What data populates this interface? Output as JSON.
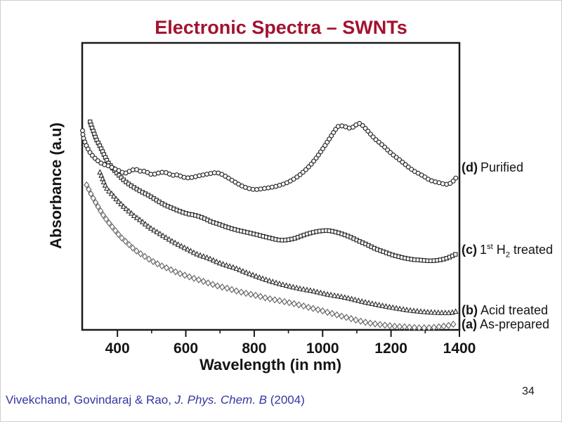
{
  "slide": {
    "title": "Electronic Spectra – SWNTs",
    "title_color": "#a21330",
    "page_number": "34",
    "citation": {
      "authors": "Vivekchand, Govindaraj & Rao, ",
      "journal_italic": "J. Phys. Chem. B",
      "year": " (2004)",
      "color": "#3535a3"
    }
  },
  "chart_data": {
    "type": "scatter",
    "title": "",
    "xlabel": "Wavelength (in nm)",
    "ylabel": "Absorbance (a.u)",
    "x_range_nm": [
      297,
      1400
    ],
    "x_major_ticks": [
      400,
      600,
      800,
      1000,
      1200,
      1400
    ],
    "x_minor_ticks": [
      500,
      700,
      900,
      1100,
      1300
    ],
    "y_axis": "arbitrary units (no ticks, no labels)",
    "axis_color": "#1a1a1a",
    "legend_position": "right of plot, beside curve endpoints",
    "series": [
      {
        "id": "d",
        "tag": "(d)",
        "name": "Purified",
        "marker": "circle",
        "stroke": "#2a2a2a",
        "points": [
          [
            298,
            0.694
          ],
          [
            300,
            0.669
          ],
          [
            308,
            0.645
          ],
          [
            316,
            0.625
          ],
          [
            326,
            0.608
          ],
          [
            336,
            0.596
          ],
          [
            349,
            0.583
          ],
          [
            361,
            0.576
          ],
          [
            375,
            0.571
          ],
          [
            392,
            0.561
          ],
          [
            406,
            0.554
          ],
          [
            421,
            0.544
          ],
          [
            437,
            0.554
          ],
          [
            453,
            0.561
          ],
          [
            468,
            0.551
          ],
          [
            482,
            0.554
          ],
          [
            494,
            0.542
          ],
          [
            509,
            0.542
          ],
          [
            525,
            0.549
          ],
          [
            544,
            0.549
          ],
          [
            560,
            0.537
          ],
          [
            574,
            0.542
          ],
          [
            591,
            0.532
          ],
          [
            611,
            0.529
          ],
          [
            638,
            0.537
          ],
          [
            667,
            0.544
          ],
          [
            693,
            0.549
          ],
          [
            714,
            0.537
          ],
          [
            734,
            0.522
          ],
          [
            755,
            0.507
          ],
          [
            775,
            0.495
          ],
          [
            802,
            0.488
          ],
          [
            831,
            0.493
          ],
          [
            857,
            0.498
          ],
          [
            878,
            0.505
          ],
          [
            905,
            0.517
          ],
          [
            939,
            0.544
          ],
          [
            974,
            0.586
          ],
          [
            1007,
            0.642
          ],
          [
            1036,
            0.696
          ],
          [
            1048,
            0.713
          ],
          [
            1067,
            0.708
          ],
          [
            1083,
            0.701
          ],
          [
            1099,
            0.716
          ],
          [
            1110,
            0.721
          ],
          [
            1130,
            0.696
          ],
          [
            1151,
            0.667
          ],
          [
            1179,
            0.64
          ],
          [
            1200,
            0.615
          ],
          [
            1227,
            0.591
          ],
          [
            1262,
            0.556
          ],
          [
            1294,
            0.537
          ],
          [
            1315,
            0.52
          ],
          [
            1343,
            0.512
          ],
          [
            1364,
            0.505
          ],
          [
            1380,
            0.515
          ],
          [
            1396,
            0.539
          ]
        ]
      },
      {
        "id": "c",
        "tag": "(c)",
        "name": "1st H2 treated",
        "name_parts": {
          "n1": "1",
          "sup": "st",
          "n2": " H",
          "sub": "2",
          "n3": " treated"
        },
        "marker": "square",
        "stroke": "#2a2a2a",
        "points": [
          [
            320,
            0.725
          ],
          [
            326,
            0.703
          ],
          [
            332,
            0.684
          ],
          [
            338,
            0.664
          ],
          [
            347,
            0.645
          ],
          [
            355,
            0.625
          ],
          [
            363,
            0.605
          ],
          [
            371,
            0.586
          ],
          [
            382,
            0.569
          ],
          [
            392,
            0.554
          ],
          [
            402,
            0.542
          ],
          [
            412,
            0.529
          ],
          [
            423,
            0.517
          ],
          [
            437,
            0.505
          ],
          [
            453,
            0.493
          ],
          [
            472,
            0.48
          ],
          [
            488,
            0.471
          ],
          [
            509,
            0.456
          ],
          [
            529,
            0.441
          ],
          [
            556,
            0.426
          ],
          [
            581,
            0.414
          ],
          [
            605,
            0.404
          ],
          [
            626,
            0.4
          ],
          [
            652,
            0.39
          ],
          [
            673,
            0.377
          ],
          [
            693,
            0.37
          ],
          [
            708,
            0.363
          ],
          [
            741,
            0.35
          ],
          [
            775,
            0.341
          ],
          [
            810,
            0.331
          ],
          [
            843,
            0.321
          ],
          [
            878,
            0.311
          ],
          [
            913,
            0.316
          ],
          [
            946,
            0.331
          ],
          [
            974,
            0.341
          ],
          [
            1001,
            0.346
          ],
          [
            1021,
            0.346
          ],
          [
            1048,
            0.338
          ],
          [
            1077,
            0.326
          ],
          [
            1103,
            0.311
          ],
          [
            1130,
            0.297
          ],
          [
            1155,
            0.282
          ],
          [
            1179,
            0.272
          ],
          [
            1206,
            0.26
          ],
          [
            1233,
            0.252
          ],
          [
            1262,
            0.245
          ],
          [
            1288,
            0.243
          ],
          [
            1315,
            0.24
          ],
          [
            1343,
            0.243
          ],
          [
            1370,
            0.252
          ],
          [
            1395,
            0.267
          ]
        ]
      },
      {
        "id": "b",
        "tag": "(b)",
        "name": "Acid treated",
        "marker": "triangle",
        "stroke": "#2a2a2a",
        "points": [
          [
            349,
            0.549
          ],
          [
            355,
            0.532
          ],
          [
            365,
            0.5
          ],
          [
            375,
            0.483
          ],
          [
            386,
            0.471
          ],
          [
            398,
            0.453
          ],
          [
            410,
            0.439
          ],
          [
            421,
            0.426
          ],
          [
            435,
            0.412
          ],
          [
            449,
            0.397
          ],
          [
            464,
            0.385
          ],
          [
            480,
            0.37
          ],
          [
            496,
            0.355
          ],
          [
            513,
            0.343
          ],
          [
            529,
            0.331
          ],
          [
            546,
            0.319
          ],
          [
            564,
            0.306
          ],
          [
            583,
            0.294
          ],
          [
            603,
            0.282
          ],
          [
            626,
            0.267
          ],
          [
            648,
            0.257
          ],
          [
            671,
            0.248
          ],
          [
            693,
            0.235
          ],
          [
            718,
            0.225
          ],
          [
            743,
            0.216
          ],
          [
            769,
            0.203
          ],
          [
            796,
            0.191
          ],
          [
            823,
            0.179
          ],
          [
            849,
            0.169
          ],
          [
            878,
            0.159
          ],
          [
            909,
            0.15
          ],
          [
            939,
            0.142
          ],
          [
            974,
            0.135
          ],
          [
            1007,
            0.125
          ],
          [
            1042,
            0.118
          ],
          [
            1077,
            0.11
          ],
          [
            1110,
            0.1
          ],
          [
            1145,
            0.091
          ],
          [
            1179,
            0.083
          ],
          [
            1212,
            0.076
          ],
          [
            1247,
            0.069
          ],
          [
            1282,
            0.064
          ],
          [
            1315,
            0.061
          ],
          [
            1350,
            0.059
          ],
          [
            1376,
            0.059
          ],
          [
            1395,
            0.066
          ]
        ]
      },
      {
        "id": "a",
        "tag": "(a)",
        "name": "As-prepared",
        "marker": "diamond",
        "stroke": "#616161",
        "points": [
          [
            310,
            0.505
          ],
          [
            318,
            0.485
          ],
          [
            326,
            0.466
          ],
          [
            336,
            0.444
          ],
          [
            347,
            0.422
          ],
          [
            357,
            0.402
          ],
          [
            369,
            0.382
          ],
          [
            382,
            0.363
          ],
          [
            394,
            0.346
          ],
          [
            406,
            0.328
          ],
          [
            421,
            0.311
          ],
          [
            437,
            0.294
          ],
          [
            453,
            0.277
          ],
          [
            472,
            0.262
          ],
          [
            490,
            0.248
          ],
          [
            509,
            0.235
          ],
          [
            529,
            0.223
          ],
          [
            550,
            0.213
          ],
          [
            572,
            0.201
          ],
          [
            595,
            0.191
          ],
          [
            620,
            0.181
          ],
          [
            644,
            0.172
          ],
          [
            669,
            0.162
          ],
          [
            695,
            0.152
          ],
          [
            722,
            0.145
          ],
          [
            749,
            0.135
          ],
          [
            777,
            0.127
          ],
          [
            806,
            0.12
          ],
          [
            837,
            0.11
          ],
          [
            868,
            0.103
          ],
          [
            898,
            0.096
          ],
          [
            929,
            0.088
          ],
          [
            960,
            0.078
          ],
          [
            991,
            0.069
          ],
          [
            1021,
            0.059
          ],
          [
            1052,
            0.049
          ],
          [
            1083,
            0.039
          ],
          [
            1114,
            0.029
          ],
          [
            1145,
            0.022
          ],
          [
            1179,
            0.017
          ],
          [
            1212,
            0.012
          ],
          [
            1247,
            0.01
          ],
          [
            1282,
            0.007
          ],
          [
            1315,
            0.007
          ],
          [
            1350,
            0.012
          ],
          [
            1376,
            0.017
          ],
          [
            1395,
            0.025
          ]
        ]
      }
    ]
  }
}
